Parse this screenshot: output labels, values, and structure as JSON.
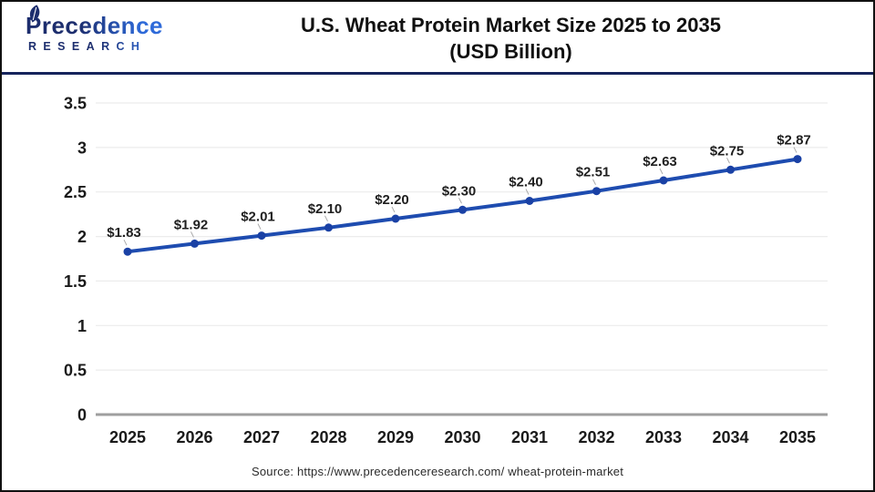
{
  "header": {
    "logo": {
      "name": "Precedence",
      "sub": "RESEARCH"
    },
    "title_line1": "U.S. Wheat Protein Market Size 2025 to 2035",
    "title_line2": "(USD Billion)"
  },
  "chart_data": {
    "type": "line",
    "title": "U.S. Wheat Protein Market Size 2025 to 2035 (USD Billion)",
    "categories": [
      "2025",
      "2026",
      "2027",
      "2028",
      "2029",
      "2030",
      "2031",
      "2032",
      "2033",
      "2034",
      "2035"
    ],
    "values": [
      1.83,
      1.92,
      2.01,
      2.1,
      2.2,
      2.3,
      2.4,
      2.51,
      2.63,
      2.75,
      2.87
    ],
    "point_labels": [
      "$1.83",
      "$1.92",
      "$2.01",
      "$2.10",
      "$2.20",
      "$2.30",
      "$2.40",
      "$2.51",
      "$2.63",
      "$2.75",
      "$2.87"
    ],
    "xlabel": "",
    "ylabel": "",
    "ylim": [
      0,
      3.5
    ],
    "yticks": [
      0,
      0.5,
      1,
      1.5,
      2,
      2.5,
      3,
      3.5
    ],
    "ytick_labels": [
      "0",
      "0.5",
      "1",
      "1.5",
      "2",
      "2.5",
      "3",
      "3.5"
    ],
    "grid": true,
    "legend": "none",
    "colors": {
      "line": "#1e4cb0",
      "marker": "#1a41a5",
      "data_label": "#1f1f1f",
      "axis_text": "#1a1a1a",
      "gridline": "#ececec",
      "axis_line": "#9e9e9e",
      "leader": "#aaaaaa"
    }
  },
  "footer": {
    "source": "Source: https://www.precedenceresearch.com/ wheat-protein-market"
  },
  "theme": {
    "frame_border": "#111111",
    "header_rule": "#16245c",
    "logo_navy": "#1d2e6e",
    "logo_blue": "#2e6ad9"
  }
}
